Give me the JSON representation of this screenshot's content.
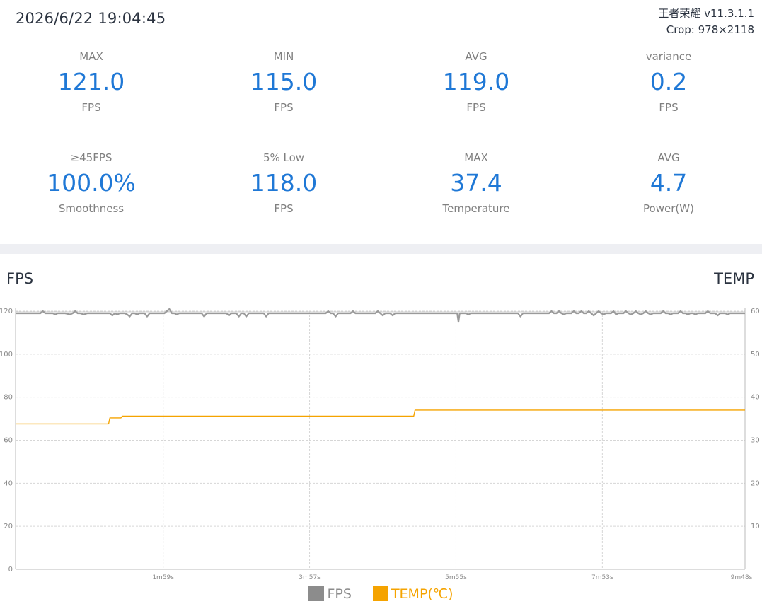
{
  "header": {
    "timestamp": "2026/6/22 19:04:45",
    "app_line": "王者荣耀 v11.3.1.1",
    "crop_line": "Crop: 978×2118"
  },
  "stats": [
    {
      "label": "MAX",
      "value": "121.0",
      "unit": "FPS"
    },
    {
      "label": "MIN",
      "value": "115.0",
      "unit": "FPS"
    },
    {
      "label": "AVG",
      "value": "119.0",
      "unit": "FPS"
    },
    {
      "label": "variance",
      "value": "0.2",
      "unit": "FPS"
    },
    {
      "label": "≥45FPS",
      "value": "100.0%",
      "unit": "Smoothness"
    },
    {
      "label": "5% Low",
      "value": "118.0",
      "unit": "FPS"
    },
    {
      "label": "MAX",
      "value": "37.4",
      "unit": "Temperature"
    },
    {
      "label": "AVG",
      "value": "4.7",
      "unit": "Power(W)"
    }
  ],
  "colors": {
    "accent": "#1f78d6",
    "fps_line": "#999999",
    "temp_line": "#f5a300",
    "divider": "#eeeff3"
  },
  "chart_titles": {
    "left": "FPS",
    "right": "TEMP"
  },
  "legend": {
    "fps": "FPS",
    "temp": "TEMP(℃)"
  },
  "chart_data": {
    "type": "line",
    "x_unit": "seconds",
    "xlim": [
      0,
      588
    ],
    "x_ticks": [
      {
        "t": 119,
        "label": "1m59s"
      },
      {
        "t": 237,
        "label": "3m57s"
      },
      {
        "t": 355,
        "label": "5m55s"
      },
      {
        "t": 473,
        "label": "7m53s"
      },
      {
        "t": 588,
        "label": "9m48s"
      }
    ],
    "y_left": {
      "ylim": [
        0,
        120
      ],
      "ticks": [
        0,
        20,
        40,
        60,
        80,
        100,
        120
      ]
    },
    "y_right": {
      "ylim": [
        0,
        60
      ],
      "ticks": [
        10,
        20,
        30,
        40,
        50,
        60
      ]
    },
    "grid": true,
    "legend_position": "bottom-center",
    "series": [
      {
        "name": "FPS",
        "axis": "left",
        "baseline": 119,
        "points": [
          [
            0,
            119
          ],
          [
            20,
            119
          ],
          [
            22,
            120
          ],
          [
            24,
            119
          ],
          [
            30,
            119
          ],
          [
            32,
            118.5
          ],
          [
            34,
            119
          ],
          [
            40,
            119
          ],
          [
            44,
            118.5
          ],
          [
            46,
            119
          ],
          [
            48,
            120
          ],
          [
            50,
            119
          ],
          [
            52,
            119
          ],
          [
            55,
            118.5
          ],
          [
            58,
            119
          ],
          [
            76,
            119
          ],
          [
            78,
            118
          ],
          [
            80,
            119
          ],
          [
            82,
            118.5
          ],
          [
            84,
            119
          ],
          [
            88,
            119
          ],
          [
            90,
            118.5
          ],
          [
            92,
            117.5
          ],
          [
            94,
            119
          ],
          [
            96,
            119
          ],
          [
            98,
            118.5
          ],
          [
            100,
            119
          ],
          [
            104,
            119
          ],
          [
            106,
            117.5
          ],
          [
            108,
            119
          ],
          [
            120,
            119
          ],
          [
            122,
            120
          ],
          [
            124,
            121
          ],
          [
            126,
            119
          ],
          [
            128,
            119
          ],
          [
            130,
            118.5
          ],
          [
            132,
            119
          ],
          [
            150,
            119
          ],
          [
            152,
            117.5
          ],
          [
            154,
            119
          ],
          [
            170,
            119
          ],
          [
            172,
            118
          ],
          [
            174,
            119
          ],
          [
            178,
            119
          ],
          [
            180,
            117.5
          ],
          [
            182,
            119
          ],
          [
            184,
            119
          ],
          [
            186,
            117.5
          ],
          [
            188,
            119
          ],
          [
            200,
            119
          ],
          [
            202,
            117.5
          ],
          [
            204,
            119
          ],
          [
            250,
            119
          ],
          [
            252,
            120
          ],
          [
            254,
            119
          ],
          [
            256,
            119
          ],
          [
            258,
            117.5
          ],
          [
            260,
            119
          ],
          [
            270,
            119
          ],
          [
            272,
            120
          ],
          [
            274,
            119
          ],
          [
            290,
            119
          ],
          [
            292,
            120
          ],
          [
            294,
            119
          ],
          [
            296,
            118
          ],
          [
            298,
            119
          ],
          [
            302,
            119
          ],
          [
            304,
            118
          ],
          [
            306,
            119
          ],
          [
            356,
            119
          ],
          [
            357,
            115
          ],
          [
            358,
            119
          ],
          [
            363,
            119
          ],
          [
            365,
            118.5
          ],
          [
            367,
            119
          ],
          [
            405,
            119
          ],
          [
            407,
            117.5
          ],
          [
            409,
            119
          ],
          [
            430,
            119
          ],
          [
            432,
            120
          ],
          [
            434,
            119
          ],
          [
            436,
            119
          ],
          [
            438,
            120
          ],
          [
            440,
            119
          ],
          [
            442,
            118.5
          ],
          [
            444,
            119
          ],
          [
            448,
            119
          ],
          [
            450,
            120
          ],
          [
            452,
            119
          ],
          [
            454,
            119
          ],
          [
            456,
            120
          ],
          [
            458,
            119
          ],
          [
            460,
            119
          ],
          [
            462,
            120
          ],
          [
            464,
            119
          ],
          [
            466,
            118
          ],
          [
            468,
            119
          ],
          [
            470,
            120
          ],
          [
            472,
            119
          ],
          [
            474,
            118.5
          ],
          [
            476,
            119
          ],
          [
            480,
            119
          ],
          [
            482,
            120
          ],
          [
            484,
            118.5
          ],
          [
            486,
            119
          ],
          [
            490,
            119
          ],
          [
            492,
            120
          ],
          [
            494,
            119
          ],
          [
            496,
            118.5
          ],
          [
            498,
            119
          ],
          [
            500,
            120
          ],
          [
            502,
            119
          ],
          [
            504,
            118.5
          ],
          [
            506,
            119
          ],
          [
            508,
            120
          ],
          [
            510,
            119
          ],
          [
            512,
            118.5
          ],
          [
            514,
            119
          ],
          [
            520,
            119
          ],
          [
            522,
            120
          ],
          [
            524,
            119
          ],
          [
            526,
            119
          ],
          [
            528,
            118.5
          ],
          [
            530,
            119
          ],
          [
            534,
            119
          ],
          [
            536,
            120
          ],
          [
            538,
            119
          ],
          [
            540,
            119
          ],
          [
            542,
            118.5
          ],
          [
            544,
            119
          ],
          [
            546,
            119
          ],
          [
            548,
            118.5
          ],
          [
            550,
            119
          ],
          [
            556,
            119
          ],
          [
            558,
            120
          ],
          [
            560,
            119
          ],
          [
            564,
            119
          ],
          [
            566,
            118
          ],
          [
            568,
            119
          ],
          [
            572,
            119
          ],
          [
            574,
            118.5
          ],
          [
            576,
            119
          ],
          [
            588,
            119
          ]
        ]
      },
      {
        "name": "TEMP(℃)",
        "axis": "right",
        "points": [
          [
            0,
            33.8
          ],
          [
            75,
            33.8
          ],
          [
            76,
            35.2
          ],
          [
            85,
            35.2
          ],
          [
            86,
            35.6
          ],
          [
            321,
            35.6
          ],
          [
            322,
            37.0
          ],
          [
            588,
            37.0
          ]
        ]
      }
    ]
  }
}
